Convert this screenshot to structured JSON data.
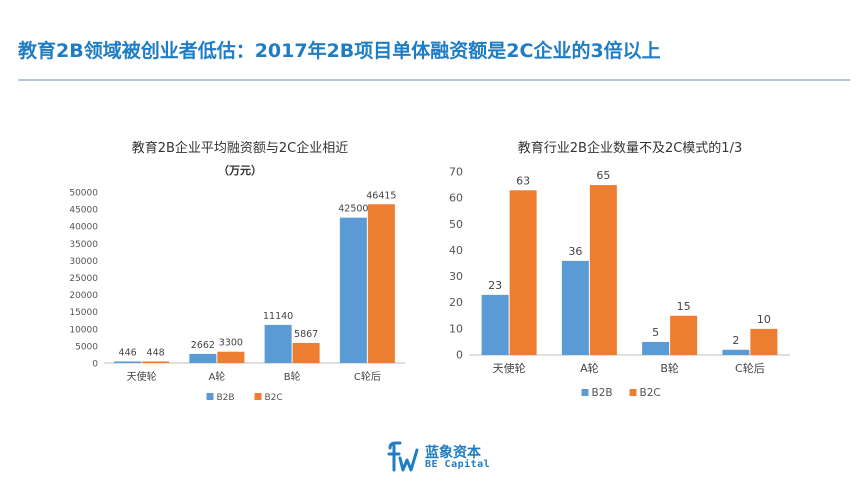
{
  "page": {
    "title": "教育2B领域被创业者低估：2017年2B项目单体融资额是2C企业的3倍以上"
  },
  "brand": {
    "name_cn": "蓝象资本",
    "name_en": "BE Capital"
  },
  "colors": {
    "title": "#1f7dc4",
    "b2b": "#5b9bd5",
    "b2c": "#ed7d31"
  },
  "chart_data": [
    {
      "type": "bar",
      "title": "教育2B企业平均融资额与2C企业相近",
      "subtitle": "（万元）",
      "categories": [
        "天使轮",
        "A轮",
        "B轮",
        "C轮后"
      ],
      "series": [
        {
          "name": "B2B",
          "values": [
            446,
            2662,
            11140,
            42500
          ]
        },
        {
          "name": "B2C",
          "values": [
            448,
            3300,
            5867,
            46415
          ]
        }
      ],
      "ylim": [
        0,
        50000
      ],
      "yticks": [
        "0",
        "5000",
        "10000",
        "15000",
        "20000",
        "25000",
        "30000",
        "35000",
        "40000",
        "45000",
        "50000"
      ],
      "grid": false,
      "legend": "bottom"
    },
    {
      "type": "bar",
      "title": "教育行业2B企业数量不及2C模式的1/3",
      "categories": [
        "天使轮",
        "A轮",
        "B轮",
        "C轮后"
      ],
      "series": [
        {
          "name": "B2B",
          "values": [
            23,
            36,
            5,
            2
          ]
        },
        {
          "name": "B2C",
          "values": [
            63,
            65,
            15,
            10
          ]
        }
      ],
      "ylim": [
        0,
        70
      ],
      "yticks": [
        "0",
        "10",
        "20",
        "30",
        "40",
        "50",
        "60",
        "70"
      ],
      "grid": false,
      "legend": "bottom"
    }
  ]
}
